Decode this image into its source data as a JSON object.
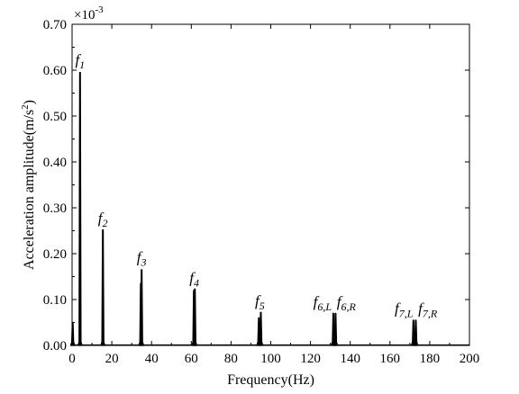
{
  "chart_data": {
    "type": "line",
    "xlabel": "Frequency(Hz)",
    "ylabel": "Acceleration amplitude(m/s",
    "ylabel_sup": "2",
    "ylabel_close": ")",
    "scale_base": "×10",
    "scale_exp": "-3",
    "xlim": [
      0,
      200
    ],
    "ylim": [
      0,
      0.7
    ],
    "x_ticks": [
      0,
      20,
      40,
      60,
      80,
      100,
      120,
      140,
      160,
      180,
      200
    ],
    "x_tick_labels": [
      "0",
      "20",
      "40",
      "60",
      "80",
      "100",
      "120",
      "140",
      "160",
      "180",
      "200"
    ],
    "y_ticks": [
      0,
      0.1,
      0.2,
      0.3,
      0.4,
      0.5,
      0.6,
      0.7
    ],
    "y_tick_labels": [
      "0.00",
      "0.10",
      "0.20",
      "0.30",
      "0.40",
      "0.50",
      "0.60",
      "0.70"
    ],
    "grid": false,
    "peaks": [
      {
        "x": 0.3,
        "y": 0.05
      },
      {
        "x": 4.0,
        "y": 0.595
      },
      {
        "x": 15.5,
        "y": 0.252
      },
      {
        "x": 35.0,
        "y": 0.165
      },
      {
        "x": 34.6,
        "y": 0.135
      },
      {
        "x": 61.3,
        "y": 0.12
      },
      {
        "x": 61.8,
        "y": 0.123
      },
      {
        "x": 94.0,
        "y": 0.06
      },
      {
        "x": 95.0,
        "y": 0.072
      },
      {
        "x": 131.5,
        "y": 0.07
      },
      {
        "x": 132.6,
        "y": 0.07
      },
      {
        "x": 171.8,
        "y": 0.055
      },
      {
        "x": 173.0,
        "y": 0.055
      }
    ],
    "annotations": [
      {
        "base": "f",
        "sub": "1",
        "x": 4.0,
        "y": 0.6
      },
      {
        "base": "f",
        "sub": "2",
        "x": 15.5,
        "y": 0.255
      },
      {
        "base": "f",
        "sub": "3",
        "x": 35.0,
        "y": 0.17
      },
      {
        "base": "f",
        "sub": "4",
        "x": 61.5,
        "y": 0.125
      },
      {
        "base": "f",
        "sub": "5",
        "x": 94.5,
        "y": 0.075
      },
      {
        "base": "f",
        "sub": "6,L",
        "x": 126.0,
        "y": 0.073
      },
      {
        "base": "f",
        "sub": "6,R",
        "x": 138.0,
        "y": 0.073
      },
      {
        "base": "f",
        "sub": "7,L",
        "x": 167.0,
        "y": 0.058
      },
      {
        "base": "f",
        "sub": "7,R",
        "x": 179.0,
        "y": 0.058
      }
    ]
  }
}
